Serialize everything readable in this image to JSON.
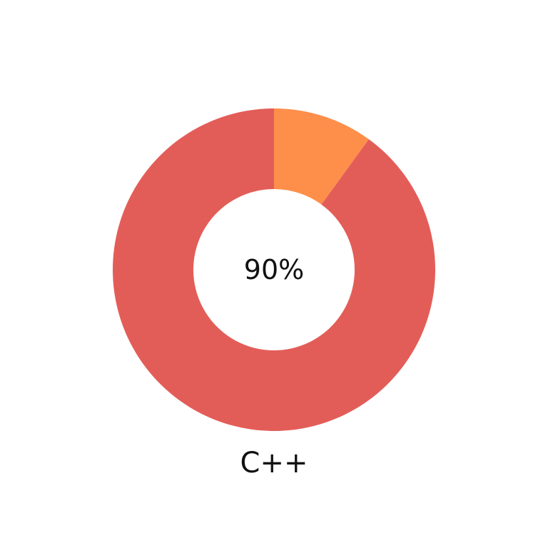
{
  "chart_data": {
    "type": "pie",
    "style": "donut",
    "center_text": "90%",
    "label": "C++",
    "slices": [
      {
        "value": 90,
        "color": "#e35d58"
      },
      {
        "value": 10,
        "color": "#fe8f4b"
      }
    ]
  }
}
